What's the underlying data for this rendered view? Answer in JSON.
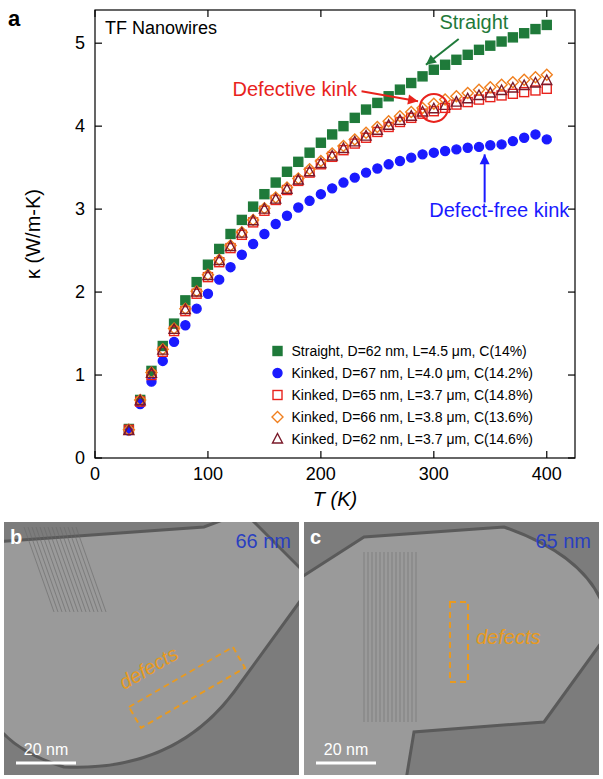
{
  "chart_data": {
    "type": "scatter",
    "panel_label": "a",
    "title": "TF Nanowires",
    "x_label": "T (K)",
    "y_label": "κ (W/m-K)",
    "xlim": [
      0,
      425
    ],
    "ylim": [
      0,
      5.4
    ],
    "xticks": [
      0,
      100,
      200,
      300,
      400
    ],
    "yticks": [
      0,
      1,
      2,
      3,
      4,
      5
    ],
    "grid": false,
    "legend": "lower right",
    "x": [
      30,
      40,
      50,
      60,
      70,
      80,
      90,
      100,
      110,
      120,
      130,
      140,
      150,
      160,
      170,
      180,
      190,
      200,
      210,
      220,
      230,
      240,
      250,
      260,
      270,
      280,
      290,
      300,
      310,
      320,
      330,
      340,
      350,
      360,
      370,
      380,
      390,
      400
    ],
    "series": [
      {
        "name": "Straight, D=62 nm, L=4.5 μm, C(14%)",
        "color": "#1f7a3a",
        "marker": "filled-square",
        "values": [
          0.35,
          0.7,
          1.05,
          1.35,
          1.62,
          1.9,
          2.12,
          2.33,
          2.52,
          2.7,
          2.87,
          3.03,
          3.18,
          3.32,
          3.45,
          3.57,
          3.68,
          3.8,
          3.9,
          4.0,
          4.1,
          4.2,
          4.28,
          4.36,
          4.44,
          4.52,
          4.6,
          4.68,
          4.74,
          4.8,
          4.86,
          4.92,
          4.97,
          5.02,
          5.07,
          5.12,
          5.17,
          5.22
        ]
      },
      {
        "name": "Kinked, D=67 nm, L=4.0 μm, C(14.2%)",
        "color": "#1a1aff",
        "marker": "filled-circle",
        "values": [
          0.33,
          0.65,
          0.92,
          1.17,
          1.4,
          1.6,
          1.8,
          1.98,
          2.15,
          2.3,
          2.45,
          2.58,
          2.7,
          2.82,
          2.92,
          3.02,
          3.1,
          3.18,
          3.25,
          3.32,
          3.38,
          3.44,
          3.49,
          3.54,
          3.58,
          3.62,
          3.66,
          3.68,
          3.7,
          3.72,
          3.74,
          3.75,
          3.77,
          3.78,
          3.82,
          3.86,
          3.9,
          3.84
        ]
      },
      {
        "name": "Kinked, D=65 nm, L=3.7 μm, C(14.8%)",
        "color": "#e8231d",
        "marker": "open-square",
        "values": [
          0.34,
          0.68,
          1.0,
          1.28,
          1.53,
          1.77,
          1.98,
          2.18,
          2.36,
          2.53,
          2.69,
          2.84,
          2.98,
          3.11,
          3.23,
          3.34,
          3.44,
          3.54,
          3.63,
          3.71,
          3.79,
          3.86,
          3.93,
          3.99,
          4.05,
          4.1,
          4.15,
          4.18,
          4.22,
          4.26,
          4.29,
          4.32,
          4.35,
          4.37,
          4.39,
          4.41,
          4.43,
          4.45
        ]
      },
      {
        "name": "Kinked, D=66 nm, L=3.8 μm, C(13.6%)",
        "color": "#f07f1e",
        "marker": "open-diamond",
        "values": [
          0.34,
          0.7,
          1.03,
          1.31,
          1.56,
          1.8,
          2.01,
          2.21,
          2.39,
          2.56,
          2.72,
          2.87,
          3.01,
          3.14,
          3.26,
          3.37,
          3.48,
          3.58,
          3.67,
          3.76,
          3.84,
          3.92,
          3.99,
          4.06,
          4.12,
          4.17,
          4.22,
          4.27,
          4.32,
          4.36,
          4.4,
          4.44,
          4.47,
          4.5,
          4.53,
          4.56,
          4.59,
          4.62
        ]
      },
      {
        "name": "Kinked, D=62 nm, L=3.7 μm, C(14.6%)",
        "color": "#7a1a2a",
        "marker": "open-triangle",
        "values": [
          0.33,
          0.69,
          1.02,
          1.3,
          1.55,
          1.79,
          2.0,
          2.2,
          2.38,
          2.55,
          2.71,
          2.86,
          3.0,
          3.12,
          3.24,
          3.35,
          3.45,
          3.55,
          3.64,
          3.73,
          3.81,
          3.88,
          3.95,
          4.01,
          4.07,
          4.12,
          4.17,
          4.21,
          4.25,
          4.29,
          4.33,
          4.37,
          4.4,
          4.43,
          4.46,
          4.49,
          4.52,
          4.55
        ]
      }
    ],
    "annotations": [
      {
        "text": "Straight",
        "color": "#1f7a3a"
      },
      {
        "text": "Defective kink",
        "color": "#e8231d"
      },
      {
        "text": "Defect-free kink",
        "color": "#1a1aff"
      }
    ]
  },
  "images": [
    {
      "panel_label": "b",
      "diameter_label": "66 nm",
      "annotation": "defects",
      "scale_bar": "20 nm"
    },
    {
      "panel_label": "c",
      "diameter_label": "65 nm",
      "annotation": "defects",
      "scale_bar": "20 nm"
    }
  ]
}
